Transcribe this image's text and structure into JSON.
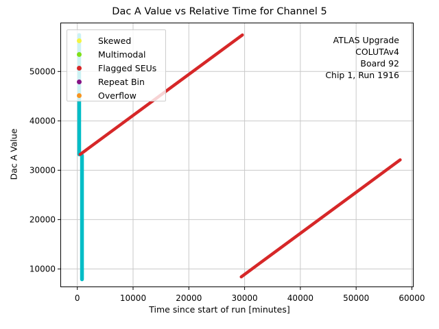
{
  "chart_data": {
    "type": "scatter",
    "title": "Dac A Value vs Relative Time for Channel 5",
    "xlabel": "Time since start of run [minutes]",
    "ylabel": "Dac A Value",
    "xlim": [
      -3040,
      60310
    ],
    "ylim": [
      6305,
      59900
    ],
    "x_ticks": [
      0,
      10000,
      20000,
      30000,
      40000,
      50000,
      60000
    ],
    "y_ticks": [
      10000,
      20000,
      30000,
      40000,
      50000
    ],
    "grid": true,
    "grid_color": "#c8c8c8",
    "legend": {
      "position": "upper left",
      "entries": [
        {
          "label": "Skewed",
          "color": "#f4f441"
        },
        {
          "label": "Multimodal",
          "color": "#80e01a"
        },
        {
          "label": "Flagged SEUs",
          "color": "#d62728"
        },
        {
          "label": "Repeat Bin",
          "color": "#851385"
        },
        {
          "label": "Overflow",
          "color": "#f79421"
        }
      ]
    },
    "annotation": {
      "lines": [
        "ATLAS Upgrade",
        "COLUTAv4",
        "Board 92",
        "Chip 1, Run 1916"
      ]
    },
    "series": [
      {
        "name": "dac-value-points",
        "color": "#00bdc7",
        "stroke_px": 5.5,
        "segments": [
          {
            "x1": 340,
            "y1": 57400,
            "x2": 340,
            "y2": 33200
          },
          {
            "x1": 840,
            "y1": 33000,
            "x2": 840,
            "y2": 7900
          }
        ]
      },
      {
        "name": "flagged-seus-ramp",
        "color": "#d62728",
        "stroke_px": 4.5,
        "segments": [
          {
            "x1": 500,
            "y1": 33200,
            "x2": 29600,
            "y2": 57400
          },
          {
            "x1": 29400,
            "y1": 8400,
            "x2": 57900,
            "y2": 32100
          }
        ]
      }
    ]
  }
}
